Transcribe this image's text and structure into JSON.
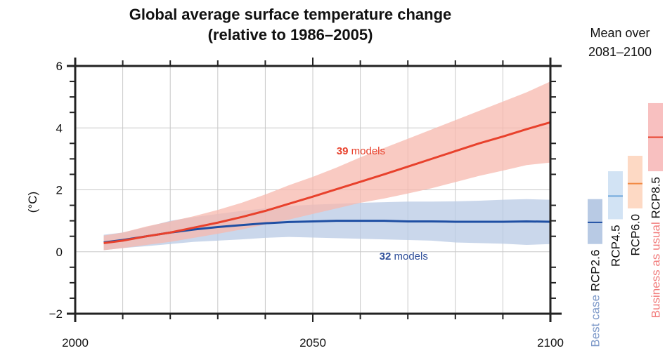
{
  "chart_data": {
    "type": "area",
    "title": "Global average surface temperature change",
    "subtitle": "(relative to 1986–2005)",
    "xlabel": "",
    "ylabel": "(°C)",
    "xlim": [
      2000,
      2100
    ],
    "ylim": [
      -2,
      6
    ],
    "x_ticks": [
      2000,
      2050,
      2100
    ],
    "x_tick_labels": [
      "2000",
      "2050",
      "2100"
    ],
    "y_ticks": [
      -2,
      0,
      2,
      4,
      6
    ],
    "y_tick_labels": [
      "−2",
      "0",
      "2",
      "4",
      "6"
    ],
    "grid": true,
    "series": [
      {
        "name": "RCP2.6",
        "annotation_count": "32",
        "annotation_text": "models",
        "color": "#1f4fa3",
        "band_color": "#b8cae4",
        "x": [
          2006,
          2010,
          2015,
          2020,
          2025,
          2030,
          2035,
          2040,
          2045,
          2050,
          2055,
          2060,
          2065,
          2070,
          2075,
          2080,
          2085,
          2090,
          2095,
          2100
        ],
        "mean": [
          0.3,
          0.38,
          0.5,
          0.62,
          0.72,
          0.8,
          0.86,
          0.92,
          0.96,
          0.98,
          1.0,
          1.0,
          1.0,
          0.98,
          0.98,
          0.97,
          0.97,
          0.97,
          0.98,
          0.97
        ],
        "lower": [
          0.05,
          0.12,
          0.18,
          0.25,
          0.32,
          0.36,
          0.4,
          0.45,
          0.48,
          0.46,
          0.44,
          0.42,
          0.4,
          0.38,
          0.36,
          0.3,
          0.28,
          0.26,
          0.22,
          0.25
        ],
        "upper": [
          0.55,
          0.62,
          0.8,
          1.0,
          1.12,
          1.22,
          1.32,
          1.4,
          1.48,
          1.52,
          1.55,
          1.58,
          1.6,
          1.62,
          1.62,
          1.63,
          1.65,
          1.68,
          1.7,
          1.68
        ]
      },
      {
        "name": "RCP8.5",
        "annotation_count": "39",
        "annotation_text": "models",
        "color": "#e8412c",
        "band_color": "#f7b8ae",
        "x": [
          2006,
          2010,
          2015,
          2020,
          2025,
          2030,
          2035,
          2040,
          2045,
          2050,
          2055,
          2060,
          2065,
          2070,
          2075,
          2080,
          2085,
          2090,
          2095,
          2100
        ],
        "mean": [
          0.28,
          0.36,
          0.5,
          0.62,
          0.78,
          0.94,
          1.12,
          1.32,
          1.55,
          1.78,
          2.02,
          2.26,
          2.5,
          2.75,
          3.0,
          3.25,
          3.5,
          3.72,
          3.96,
          4.18
        ],
        "lower": [
          0.05,
          0.12,
          0.22,
          0.32,
          0.45,
          0.58,
          0.72,
          0.88,
          1.04,
          1.22,
          1.4,
          1.58,
          1.72,
          1.88,
          2.05,
          2.25,
          2.45,
          2.62,
          2.8,
          2.88
        ],
        "upper": [
          0.52,
          0.62,
          0.82,
          0.98,
          1.15,
          1.35,
          1.58,
          1.85,
          2.15,
          2.42,
          2.72,
          3.05,
          3.35,
          3.65,
          3.95,
          4.25,
          4.55,
          4.85,
          5.15,
          5.5
        ]
      }
    ],
    "side_panel": {
      "title_line1": "Mean over",
      "title_line2": "2081–2100",
      "bars": [
        {
          "name": "RCP2.6",
          "prefix": "Best case",
          "prefix_color": "#7c98c8",
          "mean": 0.95,
          "low": 0.25,
          "high": 1.7,
          "fill": "#b8cae4",
          "line": "#1f4fa3"
        },
        {
          "name": "RCP4.5",
          "prefix": "",
          "prefix_color": "",
          "mean": 1.8,
          "low": 1.05,
          "high": 2.6,
          "fill": "#d2e3f4",
          "line": "#6fa8dc"
        },
        {
          "name": "RCP6.0",
          "prefix": "",
          "prefix_color": "",
          "mean": 2.2,
          "low": 1.4,
          "high": 3.1,
          "fill": "#fdd9c4",
          "line": "#f28a44"
        },
        {
          "name": "RCP8.5",
          "prefix": "Business as usual",
          "prefix_color": "#f27c7c",
          "mean": 3.7,
          "low": 2.6,
          "high": 4.8,
          "fill": "#f8c0c0",
          "line": "#e8412c"
        }
      ]
    }
  }
}
